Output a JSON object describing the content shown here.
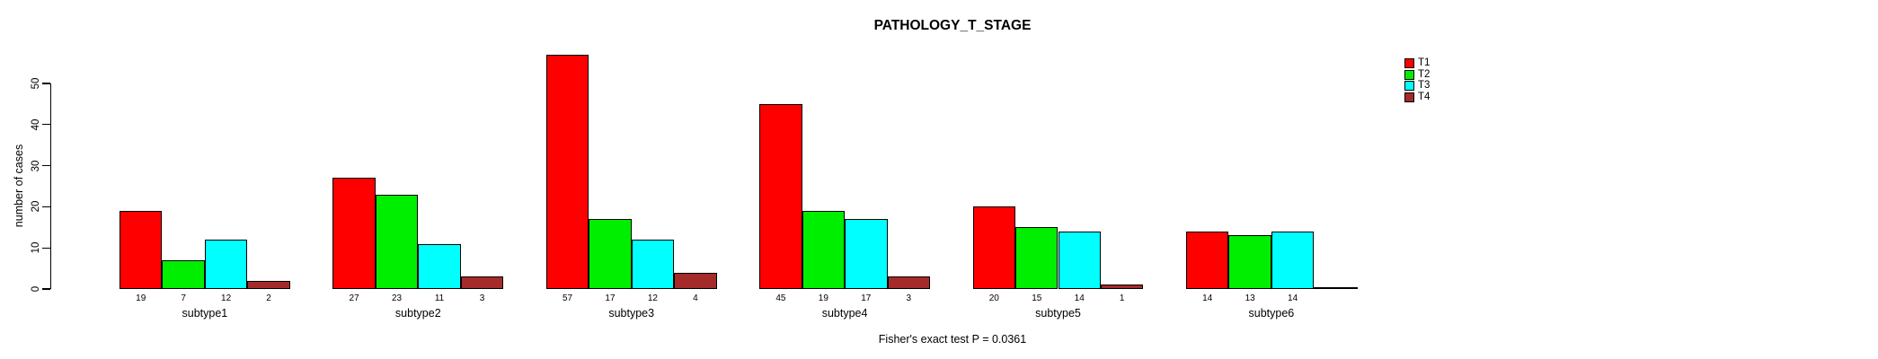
{
  "title": "PATHOLOGY_T_STAGE",
  "footer": "Fisher's exact test P = 0.0361",
  "chart_data": {
    "type": "bar",
    "grouped": true,
    "title": "PATHOLOGY_T_STAGE",
    "xlabel": "",
    "ylabel": "number of cases",
    "categories": [
      "subtype1",
      "subtype2",
      "subtype3",
      "subtype4",
      "subtype5",
      "subtype6"
    ],
    "series": [
      {
        "name": "T1",
        "color": "#FF0000",
        "values": [
          19,
          27,
          57,
          45,
          20,
          14
        ]
      },
      {
        "name": "T2",
        "color": "#00EE00",
        "values": [
          7,
          23,
          17,
          19,
          15,
          13
        ]
      },
      {
        "name": "T3",
        "color": "#00FFFF",
        "values": [
          12,
          11,
          12,
          17,
          14,
          14
        ]
      },
      {
        "name": "T4",
        "color": "#A52A2A",
        "values": [
          2,
          3,
          4,
          3,
          1,
          0
        ]
      }
    ],
    "bar_value_labels_shown": true,
    "yticks": [
      0,
      10,
      20,
      30,
      40,
      50
    ],
    "ylim": [
      0,
      57
    ],
    "grid": false,
    "legend_position": "right-outside",
    "annotation": "Fisher's exact test P = 0.0361"
  }
}
